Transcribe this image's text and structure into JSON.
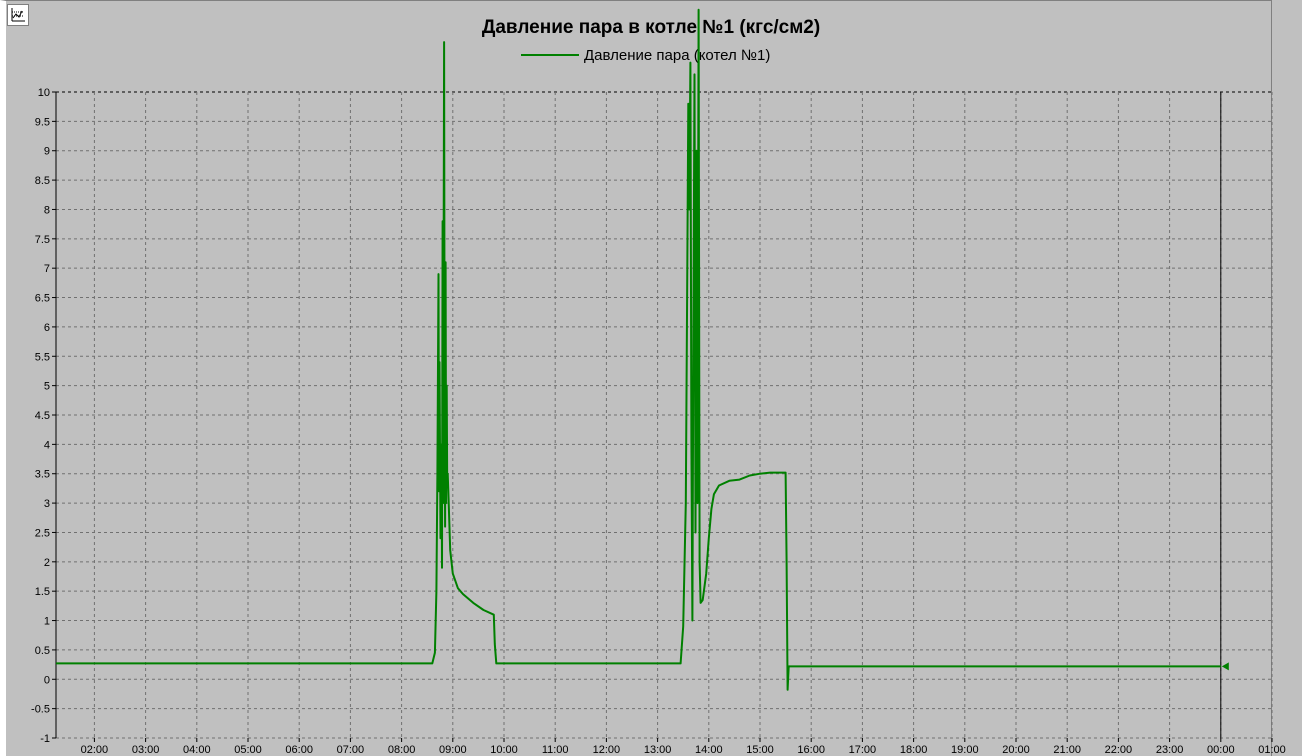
{
  "window": {
    "toolbar_icon": "chart-settings-icon"
  },
  "chart_data": {
    "type": "line",
    "title": "Давление пара в котле №1 (кгс/см2)",
    "xlabel": "",
    "ylabel": "",
    "ylim": [
      -1,
      10
    ],
    "yticks": [
      "-1",
      "-0.5",
      "0",
      "0.5",
      "1",
      "1.5",
      "2",
      "2.5",
      "3",
      "3.5",
      "4",
      "4.5",
      "5",
      "5.5",
      "6",
      "6.5",
      "7",
      "7.5",
      "8",
      "8.5",
      "9",
      "9.5",
      "10"
    ],
    "xlim_hours": [
      1.25,
      25.0
    ],
    "xticks": [
      "02:00",
      "03:00",
      "04:00",
      "05:00",
      "06:00",
      "07:00",
      "08:00",
      "09:00",
      "10:00",
      "11:00",
      "12:00",
      "13:00",
      "14:00",
      "15:00",
      "16:00",
      "17:00",
      "18:00",
      "19:00",
      "20:00",
      "21:00",
      "22:00",
      "23:00",
      "00:00",
      "01:00"
    ],
    "grid": true,
    "legend_position": "top-center",
    "cursor_time_hours": 24.0,
    "series": [
      {
        "name": "Давление пара (котел №1)",
        "color": "#008000",
        "points": [
          [
            1.25,
            0.27
          ],
          [
            8.6,
            0.27
          ],
          [
            8.65,
            0.45
          ],
          [
            8.68,
            1.5
          ],
          [
            8.7,
            3.5
          ],
          [
            8.72,
            6.9
          ],
          [
            8.73,
            3.2
          ],
          [
            8.74,
            5.4
          ],
          [
            8.76,
            2.4
          ],
          [
            8.78,
            4.0
          ],
          [
            8.79,
            1.9
          ],
          [
            8.8,
            7.8
          ],
          [
            8.81,
            3.0
          ],
          [
            8.83,
            10.85
          ],
          [
            8.84,
            5.0
          ],
          [
            8.85,
            2.6
          ],
          [
            8.86,
            7.1
          ],
          [
            8.87,
            3.0
          ],
          [
            8.88,
            5.0
          ],
          [
            8.89,
            3.3
          ],
          [
            8.9,
            3.5
          ],
          [
            8.92,
            3.0
          ],
          [
            8.95,
            2.2
          ],
          [
            9.0,
            1.8
          ],
          [
            9.1,
            1.55
          ],
          [
            9.2,
            1.45
          ],
          [
            9.4,
            1.3
          ],
          [
            9.6,
            1.18
          ],
          [
            9.8,
            1.1
          ],
          [
            9.82,
            0.6
          ],
          [
            9.85,
            0.27
          ],
          [
            13.45,
            0.27
          ],
          [
            13.5,
            0.9
          ],
          [
            13.55,
            3.0
          ],
          [
            13.58,
            7.0
          ],
          [
            13.6,
            9.8
          ],
          [
            13.62,
            8.0
          ],
          [
            13.64,
            10.5
          ],
          [
            13.66,
            4.0
          ],
          [
            13.68,
            1.0
          ],
          [
            13.7,
            6.0
          ],
          [
            13.72,
            10.3
          ],
          [
            13.74,
            2.5
          ],
          [
            13.76,
            9.0
          ],
          [
            13.78,
            3.0
          ],
          [
            13.8,
            11.4
          ],
          [
            13.82,
            2.0
          ],
          [
            13.84,
            1.3
          ],
          [
            13.88,
            1.35
          ],
          [
            13.95,
            1.8
          ],
          [
            14.0,
            2.4
          ],
          [
            14.05,
            2.9
          ],
          [
            14.1,
            3.15
          ],
          [
            14.2,
            3.3
          ],
          [
            14.4,
            3.38
          ],
          [
            14.6,
            3.4
          ],
          [
            14.8,
            3.47
          ],
          [
            15.0,
            3.5
          ],
          [
            15.2,
            3.52
          ],
          [
            15.5,
            3.52
          ],
          [
            15.52,
            2.0
          ],
          [
            15.54,
            -0.18
          ],
          [
            15.56,
            0.22
          ],
          [
            24.0,
            0.22
          ]
        ]
      }
    ]
  }
}
